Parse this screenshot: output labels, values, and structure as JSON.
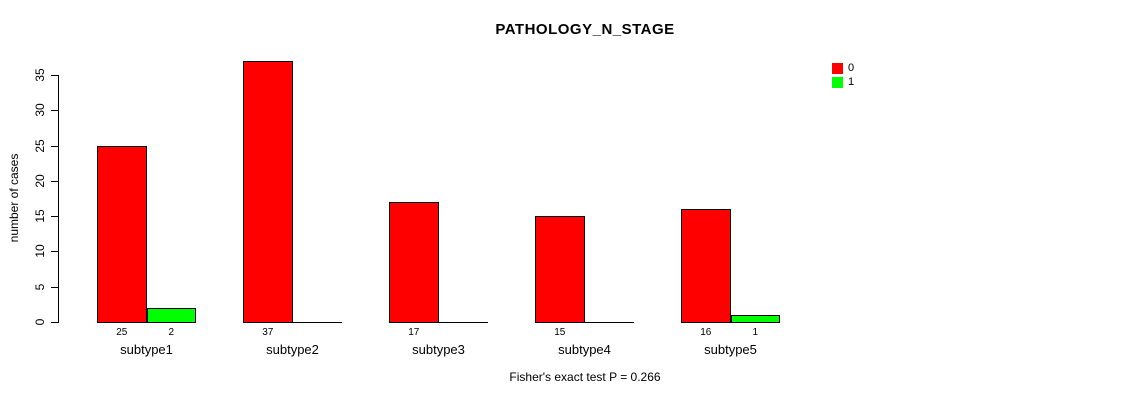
{
  "chart_data": {
    "type": "bar",
    "title": "PATHOLOGY_N_STAGE",
    "categories": [
      "subtype1",
      "subtype2",
      "subtype3",
      "subtype4",
      "subtype5"
    ],
    "series": [
      {
        "name": "0",
        "color": "#FF0000",
        "values": [
          25,
          37,
          17,
          15,
          16
        ]
      },
      {
        "name": "1",
        "color": "#00FF00",
        "values": [
          2,
          0,
          0,
          0,
          1
        ]
      }
    ],
    "bar_value_labels": {
      "series_0": [
        "25",
        "37",
        "17",
        "15",
        "16"
      ],
      "series_1": [
        "2",
        "",
        "",
        "",
        "1"
      ],
      "rule": "value label shown under bar only when value > 0"
    },
    "xlabel": "",
    "ylabel": "number of cases",
    "ylim": [
      0,
      35
    ],
    "yticks": [
      0,
      5,
      10,
      15,
      20,
      25,
      30,
      35
    ],
    "grid": false,
    "legend_position": "top-right",
    "legend_labels": [
      "0",
      "1"
    ],
    "annotation": "Fisher's exact test P = 0.266"
  },
  "legend": {
    "items": [
      {
        "label": "0",
        "color": "#FF0000"
      },
      {
        "label": "1",
        "color": "#00FF00"
      }
    ]
  }
}
